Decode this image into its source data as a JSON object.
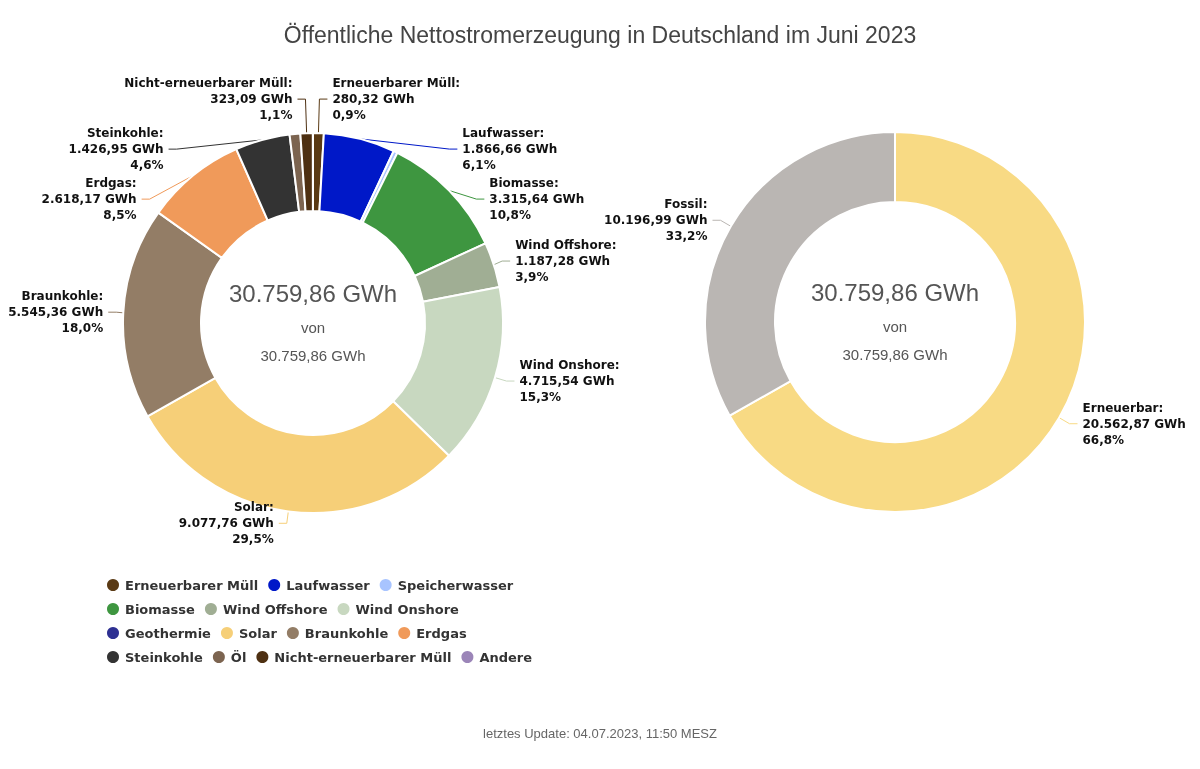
{
  "chart_data": [
    {
      "type": "donut",
      "title": "Öffentliche Nettostromerzeugung in Deutschland im Juni 2023",
      "categories": [
        "Erneuerbarer Müll",
        "Laufwasser",
        "Speicherwasser",
        "Biomasse",
        "Wind Offshore",
        "Wind Onshore",
        "Geothermie",
        "Solar",
        "Braunkohle",
        "Erdgas",
        "Steinkohle",
        "Öl",
        "Nicht-erneuerbarer Müll",
        "Andere"
      ],
      "values": [
        280.32,
        1866.66,
        105,
        3315.64,
        1187.28,
        4715.54,
        null,
        9077.76,
        5545.36,
        2618.17,
        1426.95,
        280,
        323.09,
        3
      ],
      "colors": [
        "#5a3a14",
        "#0018c8",
        "#a8c4ff",
        "#3e9640",
        "#a0ae94",
        "#c8d8c0",
        "#2e3092",
        "#f6cf78",
        "#937d66",
        "#f09a5a",
        "#333333",
        "#7c6450",
        "#4e3012",
        "#9b85b8"
      ],
      "value_labels": [
        "Erneuerbarer Müll:\n280,32 GWh\n0,9%",
        "Laufwasser:\n1.866,66 GWh\n6,1%",
        null,
        "Biomasse:\n3.315,64 GWh\n10,8%",
        "Wind Offshore:\n1.187,28 GWh\n3,9%",
        "Wind Onshore:\n4.715,54 GWh\n15,3%",
        null,
        "Solar:\n9.077,76 GWh\n29,5%",
        "Braunkohle:\n5.545,36 GWh\n18,0%",
        "Erdgas:\n2.618,17 GWh\n8,5%",
        "Steinkohle:\n1.426,95 GWh\n4,6%",
        null,
        "Nicht-erneuerbarer Müll:\n323,09 GWh\n1,1%",
        null
      ],
      "annotations": [
        "30.759,86 GWh",
        "von",
        "30.759,86 GWh"
      ],
      "legend": "bottom left"
    },
    {
      "type": "donut",
      "values": [
        66.8,
        33.2
      ],
      "colors": [
        "#f8da84",
        "#bab6b3"
      ],
      "value_labels": [
        "Erneuerbar:\n20.562,87 GWh\n66,8%",
        "Fossil:\n10.196,99 GWh\n33,2%"
      ],
      "annotations": [
        "30.759,86 GWh",
        "von",
        "30.759,86 GWh",
        "letztes Update: 04.07.2023, 11:50 MESZ"
      ]
    }
  ]
}
